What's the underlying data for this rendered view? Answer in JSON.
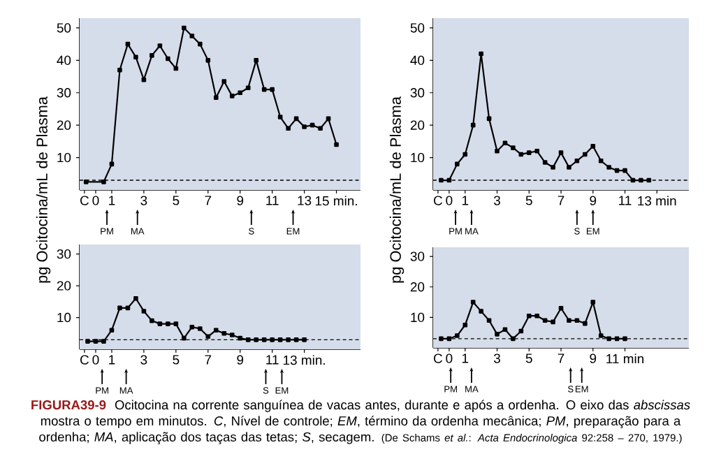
{
  "chart_data": [
    {
      "type": "line",
      "ylabel": "pg Ocitocina/mL de Plasma",
      "x": [
        -0.6,
        0.5,
        1,
        1.5,
        2,
        2.5,
        3,
        3.5,
        4,
        4.5,
        5,
        5.5,
        6,
        6.5,
        7,
        7.5,
        8,
        8.5,
        9,
        9.5,
        10,
        10.5,
        11,
        11.5,
        12,
        12.5,
        13,
        13.5,
        14,
        14.5,
        15
      ],
      "values": [
        2.5,
        2.5,
        8,
        37,
        45,
        41,
        34,
        41.5,
        44.5,
        40.5,
        37.5,
        50,
        47.5,
        45,
        40,
        28.5,
        33.5,
        29,
        30,
        31.5,
        40,
        31,
        31,
        22.5,
        19,
        22,
        19.5,
        20,
        19,
        22,
        14
      ],
      "color": "#000000",
      "marker": "square",
      "line_style": "solid",
      "xlim": [
        -1,
        16.5
      ],
      "ylim": [
        0,
        53
      ],
      "xticks": [
        {
          "value": -0.7,
          "label": "C"
        },
        0,
        1,
        3,
        5,
        7,
        9,
        11,
        13,
        {
          "value": 15,
          "label": "15 min."
        }
      ],
      "yticks": [
        10,
        20,
        30,
        40,
        50
      ],
      "ref_lines": [
        {
          "axis": "y",
          "value": 3,
          "line_style": "dashed"
        }
      ],
      "annotations": [
        {
          "text": "PM",
          "x": 0.7
        },
        {
          "text": "MA",
          "x": 2.6
        },
        {
          "text": "S",
          "x": 9.7
        },
        {
          "text": "EM",
          "x": 12.3
        },
        "FIGURA39-9",
        "Ocitocina na corrente sanguínea de vacas antes, durante e após a ordenha. O eixo das *abscissas* mostra o tempo em minutos. *C*, Nível de controle; *EM*, término da ordenha mecânica; *PM*, preparação para a ordenha; *MA*, aplicação dos taças das tetas; *S*, secagem.",
        "(De Schams *et al.*: *Acta Endocrinologica* 92:258 – 270, 1979.)"
      ]
    },
    {
      "type": "line",
      "ylabel": "pg Ocitocina/mL de Plasma",
      "x": [
        -0.5,
        0,
        0.5,
        1,
        1.5,
        2,
        2.5,
        3,
        3.5,
        4,
        4.5,
        5,
        5.5,
        6,
        6.5,
        7,
        7.5,
        8,
        8.5,
        9,
        9.5,
        10,
        10.5,
        11,
        11.5,
        12,
        12.5
      ],
      "values": [
        3,
        3,
        8,
        11,
        20,
        42,
        22,
        12,
        14.5,
        13,
        11,
        11.5,
        12,
        8.5,
        7,
        11.5,
        7,
        9,
        11,
        13.5,
        9,
        7,
        6,
        6,
        3,
        3,
        3
      ],
      "color": "#000000",
      "marker": "square",
      "line_style": "solid",
      "xlim": [
        -1,
        15
      ],
      "ylim": [
        0,
        53
      ],
      "xticks": [
        {
          "value": -0.7,
          "label": "C"
        },
        0,
        1,
        3,
        5,
        7,
        9,
        11,
        {
          "value": 13,
          "label": "13 min"
        }
      ],
      "yticks": [
        10,
        20,
        30,
        40,
        50
      ],
      "ref_lines": [
        {
          "axis": "y",
          "value": 3,
          "line_style": "dashed"
        }
      ],
      "annotations": [
        {
          "text": "PM",
          "x": 0.4
        },
        {
          "text": "MA",
          "x": 1.4
        },
        {
          "text": "S",
          "x": 8.0
        },
        {
          "text": "EM",
          "x": 9.0
        }
      ]
    },
    {
      "type": "line",
      "x": [
        -0.5,
        0,
        0.5,
        1,
        1.5,
        2,
        2.5,
        3,
        3.5,
        4,
        4.5,
        5,
        5.5,
        6,
        6.5,
        7,
        7.5,
        8,
        8.5,
        9,
        9.5,
        10,
        10.5,
        11,
        11.5,
        12,
        12.5,
        13
      ],
      "values": [
        2.5,
        2.5,
        2.5,
        6,
        13,
        13,
        16,
        12,
        9,
        8,
        8,
        8,
        3.5,
        7,
        6.5,
        4,
        6,
        5,
        4.5,
        3.5,
        3,
        3,
        3,
        3,
        3,
        3,
        3,
        3
      ],
      "color": "#000000",
      "marker": "square",
      "line_style": "solid",
      "xlim": [
        -1,
        16.5
      ],
      "ylim": [
        0,
        33
      ],
      "xticks": [
        {
          "value": -0.7,
          "label": "C"
        },
        0,
        1,
        3,
        5,
        7,
        9,
        11,
        {
          "value": 13,
          "label": "13 min."
        }
      ],
      "yticks": [
        10,
        20,
        30
      ],
      "ref_lines": [
        {
          "axis": "y",
          "value": 3,
          "line_style": "dashed"
        }
      ],
      "annotations": [
        {
          "text": "PM",
          "x": 0.4
        },
        {
          "text": "MA",
          "x": 1.9
        },
        {
          "text": "S",
          "x": 10.6
        },
        {
          "text": "EM",
          "x": 11.6
        }
      ]
    },
    {
      "type": "line",
      "x": [
        -0.5,
        0,
        0.5,
        1,
        1.5,
        2,
        2.5,
        3,
        3.5,
        4,
        4.5,
        5,
        5.5,
        6,
        6.5,
        7,
        7.5,
        8,
        8.5,
        9,
        9.5,
        10,
        10.5,
        11
      ],
      "values": [
        3,
        3,
        4,
        7.5,
        15,
        12,
        9,
        4.5,
        6,
        3,
        5.5,
        10.5,
        10.5,
        9,
        8.5,
        13,
        9,
        9,
        8,
        15,
        4,
        3,
        3,
        3
      ],
      "color": "#000000",
      "marker": "square",
      "line_style": "solid",
      "xlim": [
        -1,
        15
      ],
      "ylim": [
        0,
        33
      ],
      "xticks": [
        {
          "value": -0.7,
          "label": "C"
        },
        0,
        1,
        3,
        5,
        7,
        9,
        {
          "value": 11,
          "label": "11 min"
        }
      ],
      "yticks": [
        10,
        20,
        30
      ],
      "ref_lines": [
        {
          "axis": "y",
          "value": 3,
          "line_style": "dashed"
        }
      ],
      "annotations": [
        {
          "text": "PM",
          "x": 0.1
        },
        {
          "text": "MA",
          "x": 1.4
        },
        {
          "text": "S",
          "x": 7.6
        },
        {
          "text": "EM",
          "x": 8.3
        }
      ]
    }
  ]
}
